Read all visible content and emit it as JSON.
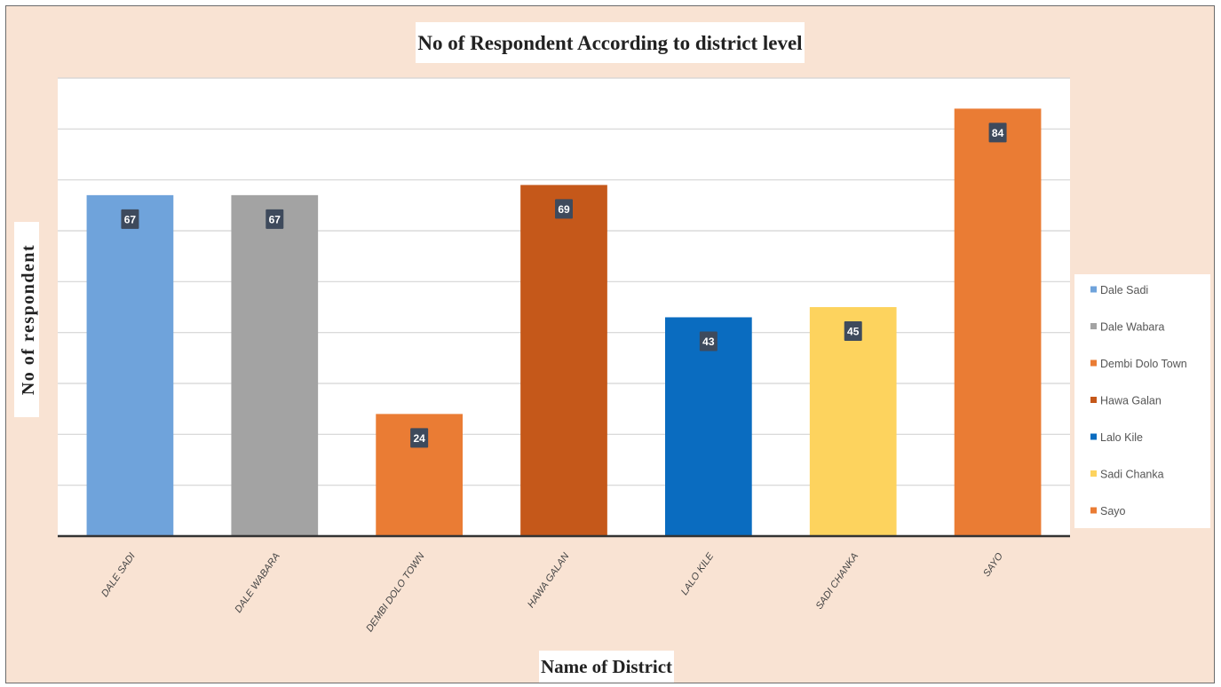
{
  "chart_data": {
    "type": "bar",
    "title": "No of Respondent According to district level",
    "xlabel": "Name of District",
    "ylabel": "No of respondent",
    "categories": [
      "DALE SADI",
      "DALE WABARA",
      "DEMBI DOLO TOWN",
      "HAWA GALAN",
      "LALO KILE",
      "SADI CHANKA",
      "SAYO"
    ],
    "values": [
      67,
      67,
      24,
      69,
      43,
      45,
      84
    ],
    "colors": [
      "#6fa3db",
      "#a3a3a3",
      "#ea7c34",
      "#c5581a",
      "#0a6cc0",
      "#fdd35e",
      "#ea7c34"
    ],
    "ylim": [
      0,
      90
    ],
    "grid": true,
    "legend": {
      "position": "right",
      "entries": [
        "Dale Sadi",
        "Dale Wabara",
        "Dembi Dolo Town",
        "Hawa Galan",
        "Lalo Kile",
        "Sadi Chanka",
        "Sayo"
      ]
    }
  }
}
